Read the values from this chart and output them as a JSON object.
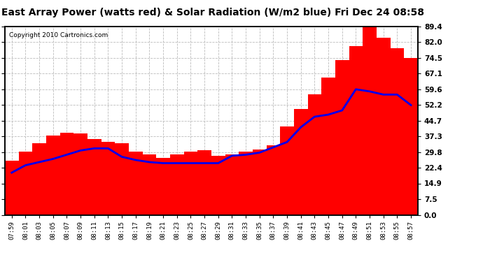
{
  "title": "East Array Power (watts red) & Solar Radiation (W/m2 blue) Fri Dec 24 08:58",
  "copyright_text": "Copyright 2010 Cartronics.com",
  "yticks_right": [
    0.0,
    7.5,
    14.9,
    22.4,
    29.8,
    37.3,
    44.7,
    52.2,
    59.6,
    67.1,
    74.5,
    82.0,
    89.4
  ],
  "ylim": [
    0.0,
    89.4
  ],
  "bar_color": "#FF0000",
  "line_color": "#0000EE",
  "background_color": "#FFFFFF",
  "grid_color": "#BBBBBB",
  "title_fontsize": 10,
  "x_labels": [
    "07:59",
    "08:01",
    "08:03",
    "08:05",
    "08:07",
    "08:09",
    "08:11",
    "08:13",
    "08:15",
    "08:17",
    "08:19",
    "08:21",
    "08:23",
    "08:25",
    "08:27",
    "08:29",
    "08:31",
    "08:33",
    "08:35",
    "08:37",
    "08:39",
    "08:41",
    "08:43",
    "08:45",
    "08:47",
    "08:49",
    "08:51",
    "08:53",
    "08:55",
    "08:57"
  ],
  "bar_values": [
    25.5,
    30.0,
    34.0,
    37.5,
    39.0,
    38.5,
    36.0,
    34.5,
    34.0,
    30.0,
    28.5,
    27.0,
    28.5,
    30.0,
    30.5,
    28.0,
    28.5,
    30.0,
    31.0,
    33.0,
    42.0,
    50.0,
    57.0,
    65.0,
    73.5,
    80.0,
    89.4,
    84.0,
    79.0,
    74.5
  ],
  "line_values": [
    20.0,
    23.5,
    25.0,
    26.5,
    28.5,
    30.5,
    31.5,
    31.5,
    27.5,
    26.0,
    25.0,
    24.5,
    24.5,
    24.5,
    24.5,
    24.5,
    28.0,
    28.5,
    29.5,
    32.0,
    34.5,
    41.5,
    46.5,
    47.5,
    49.5,
    59.5,
    58.5,
    57.0,
    57.0,
    52.0
  ],
  "figsize": [
    6.9,
    3.75
  ],
  "dpi": 100
}
